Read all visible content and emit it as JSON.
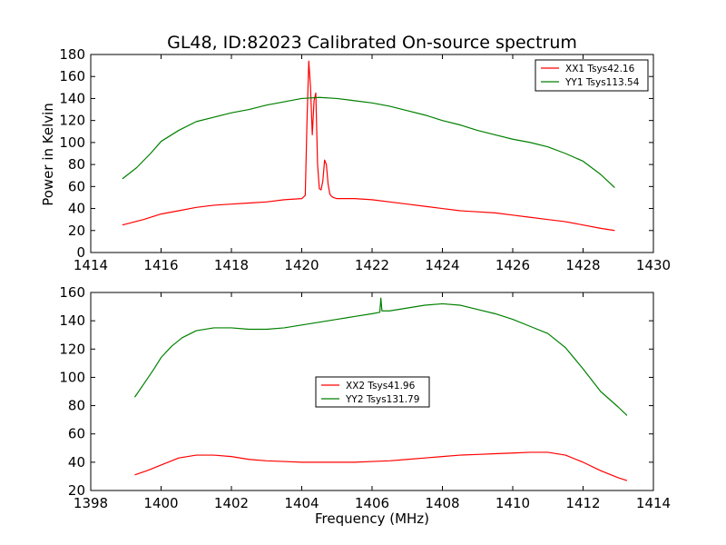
{
  "figure": {
    "title": "GL48, ID:82023 Calibrated On-source spectrum",
    "ylabel": "Power in Kelvin",
    "xlabel": "Frequency (MHz)"
  },
  "chart_data": [
    {
      "type": "line",
      "title": "GL48, ID:82023 Calibrated On-source spectrum",
      "xlabel": "",
      "ylabel": "Power in Kelvin",
      "xlim": [
        1414,
        1430
      ],
      "ylim": [
        0,
        180
      ],
      "xticks": [
        1414,
        1416,
        1418,
        1420,
        1422,
        1424,
        1426,
        1428,
        1430
      ],
      "yticks": [
        0,
        20,
        40,
        60,
        80,
        100,
        120,
        140,
        160,
        180
      ],
      "grid": false,
      "legend_position": "top-right",
      "series": [
        {
          "name": "XX1 Tsys42.16",
          "color": "#ff0000",
          "x": [
            1414.9,
            1415.5,
            1416.0,
            1416.5,
            1417.0,
            1417.5,
            1418.0,
            1418.5,
            1419.0,
            1419.5,
            1420.0,
            1420.1,
            1420.15,
            1420.2,
            1420.25,
            1420.3,
            1420.35,
            1420.4,
            1420.45,
            1420.5,
            1420.55,
            1420.6,
            1420.65,
            1420.7,
            1420.75,
            1420.8,
            1420.85,
            1420.9,
            1421.0,
            1421.5,
            1422.0,
            1422.5,
            1423.0,
            1423.5,
            1424.0,
            1424.5,
            1425.0,
            1425.5,
            1426.0,
            1426.5,
            1427.0,
            1427.5,
            1428.0,
            1428.5,
            1428.9
          ],
          "y": [
            25,
            30,
            35,
            38,
            41,
            43,
            44,
            45,
            46,
            48,
            49,
            52,
            120,
            174,
            150,
            107,
            138,
            145,
            80,
            58,
            57,
            65,
            84,
            80,
            62,
            53,
            51,
            50,
            49,
            49,
            48,
            46,
            44,
            42,
            40,
            38,
            37,
            36,
            34,
            32,
            30,
            28,
            25,
            22,
            20
          ]
        },
        {
          "name": "YY1 Tsys113.54",
          "color": "#008000",
          "x": [
            1414.9,
            1415.3,
            1415.7,
            1416.0,
            1416.5,
            1417.0,
            1417.5,
            1418.0,
            1418.5,
            1419.0,
            1419.5,
            1420.0,
            1420.5,
            1421.0,
            1421.5,
            1422.0,
            1422.5,
            1423.0,
            1423.5,
            1424.0,
            1424.5,
            1425.0,
            1425.5,
            1426.0,
            1426.5,
            1427.0,
            1427.5,
            1428.0,
            1428.5,
            1428.9
          ],
          "y": [
            67,
            77,
            90,
            101,
            111,
            119,
            123,
            127,
            130,
            134,
            137,
            140,
            141,
            140,
            138,
            136,
            133,
            129,
            125,
            120,
            116,
            111,
            107,
            103,
            100,
            96,
            90,
            83,
            71,
            59
          ]
        }
      ]
    },
    {
      "type": "line",
      "title": "",
      "xlabel": "Frequency (MHz)",
      "ylabel": "",
      "xlim": [
        1398,
        1414
      ],
      "ylim": [
        20,
        160
      ],
      "xticks": [
        1398,
        1400,
        1402,
        1404,
        1406,
        1408,
        1410,
        1412,
        1414
      ],
      "yticks": [
        20,
        40,
        60,
        80,
        100,
        120,
        140,
        160
      ],
      "grid": false,
      "legend_position": "center",
      "series": [
        {
          "name": "XX2 Tsys41.96",
          "color": "#ff0000",
          "x": [
            1399.25,
            1399.6,
            1400.0,
            1400.5,
            1401.0,
            1401.5,
            1402.0,
            1402.5,
            1403.0,
            1403.5,
            1404.0,
            1404.5,
            1405.0,
            1405.5,
            1406.0,
            1406.5,
            1407.0,
            1407.5,
            1408.0,
            1408.5,
            1409.0,
            1409.5,
            1410.0,
            1410.5,
            1411.0,
            1411.5,
            1412.0,
            1412.5,
            1413.0,
            1413.25
          ],
          "y": [
            31,
            34,
            38,
            43,
            45,
            45,
            44,
            42,
            41,
            40.5,
            40,
            40,
            40,
            40,
            40.5,
            41,
            42,
            43,
            44,
            45,
            45.5,
            46,
            46.5,
            47,
            47,
            45,
            40,
            34,
            29,
            27
          ]
        },
        {
          "name": "YY2 Tsys131.79",
          "color": "#008000",
          "x": [
            1399.25,
            1399.5,
            1399.8,
            1400.0,
            1400.3,
            1400.6,
            1401.0,
            1401.5,
            1402.0,
            1402.5,
            1403.0,
            1403.5,
            1404.0,
            1404.5,
            1405.0,
            1405.5,
            1406.0,
            1406.22,
            1406.25,
            1406.28,
            1406.5,
            1407.0,
            1407.5,
            1408.0,
            1408.5,
            1409.0,
            1409.5,
            1410.0,
            1410.5,
            1411.0,
            1411.5,
            1412.0,
            1412.5,
            1413.0,
            1413.25
          ],
          "y": [
            86,
            95,
            106,
            114,
            122,
            128,
            133,
            135,
            135,
            134,
            134,
            135,
            137,
            139,
            141,
            143,
            145,
            146,
            156,
            147,
            147,
            149,
            151,
            152,
            151,
            148,
            145,
            141,
            136,
            131,
            121,
            106,
            90,
            79,
            73
          ]
        }
      ]
    }
  ]
}
